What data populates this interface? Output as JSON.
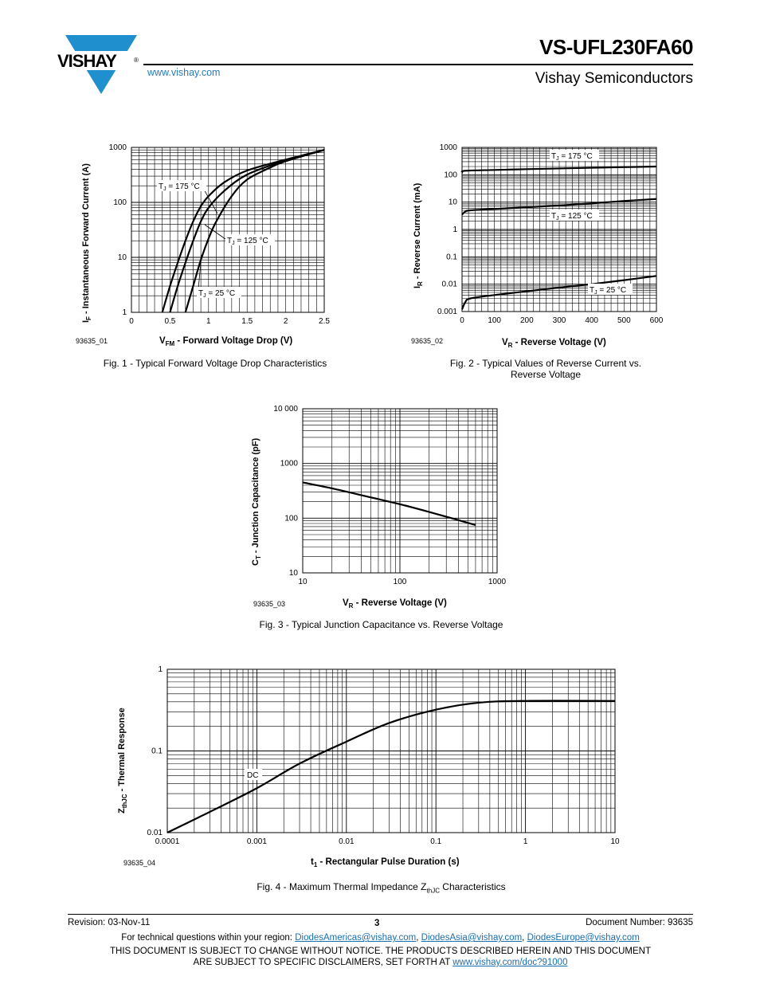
{
  "header": {
    "logo_text": "VISHAY",
    "logo_registered": "®",
    "url": "www.vishay.com",
    "part_number": "VS-UFL230FA60",
    "company": "Vishay Semiconductors"
  },
  "figures": [
    {
      "id": "93635_01",
      "caption": "Fig. 1 - Typical Forward Voltage Drop Characteristics",
      "ylabel_main": "I",
      "ylabel_sub": "F",
      "ylabel_rest": " - Instantaneous Forward Current (A)",
      "xlabel_main": "V",
      "xlabel_sub": "FM",
      "xlabel_rest": " - Forward Voltage Drop (V)",
      "x_ticks": [
        "0",
        "0.5",
        "1",
        "1.5",
        "2",
        "2.5"
      ],
      "y_ticks": [
        "1",
        "10",
        "100",
        "1000"
      ],
      "annotations": [
        {
          "pre": "T",
          "sub": "J",
          "post": " = 175 °C"
        },
        {
          "pre": "T",
          "sub": "J",
          "post": " = 125 °C"
        },
        {
          "pre": "T",
          "sub": "J",
          "post": " = 25 °C"
        }
      ]
    },
    {
      "id": "93635_02",
      "caption": "Fig. 2 - Typical Values of Reverse Current vs.",
      "caption2": "Reverse Voltage",
      "ylabel_main": "I",
      "ylabel_sub": "R",
      "ylabel_rest": " - Reverse Current (mA)",
      "xlabel_main": "V",
      "xlabel_sub": "R",
      "xlabel_rest": " - Reverse Voltage (V)",
      "x_ticks": [
        "0",
        "100",
        "200",
        "300",
        "400",
        "500",
        "600"
      ],
      "y_ticks": [
        "0.001",
        "0.01",
        "0.1",
        "1",
        "10",
        "100",
        "1000"
      ],
      "annotations": [
        {
          "pre": "T",
          "sub": "J",
          "post": " = 175 °C"
        },
        {
          "pre": "T",
          "sub": "J",
          "post": " = 125 °C"
        },
        {
          "pre": "T",
          "sub": "J",
          "post": " = 25 °C"
        }
      ]
    },
    {
      "id": "93635_03",
      "caption": "Fig. 3 - Typical Junction Capacitance vs. Reverse Voltage",
      "ylabel_main": "C",
      "ylabel_sub": "T",
      "ylabel_rest": " - Junction Capacitance (pF)",
      "xlabel_main": "V",
      "xlabel_sub": "R",
      "xlabel_rest": " - Reverse Voltage (V)",
      "x_ticks": [
        "10",
        "100",
        "1000"
      ],
      "y_ticks": [
        "10",
        "100",
        "1000",
        "10 000"
      ]
    },
    {
      "id": "93635_04",
      "caption_pre": "Fig. 4 - Maximum Thermal Impedance Z",
      "caption_sub": "thJC",
      "caption_post": " Characteristics",
      "ylabel_main": "Z",
      "ylabel_sub": "thJC",
      "ylabel_rest": " - Thermal Response",
      "xlabel_main": "t",
      "xlabel_sub": "1",
      "xlabel_rest": " - Rectangular Pulse Duration (s)",
      "x_ticks": [
        "0.0001",
        "0.001",
        "0.01",
        "0.1",
        "1",
        "10"
      ],
      "y_ticks": [
        "0.01",
        "0.1",
        "1"
      ],
      "annotation": "DC"
    }
  ],
  "chart_data": [
    {
      "type": "line",
      "xlim": [
        0,
        2.5
      ],
      "ylim": [
        1,
        1000
      ],
      "y_scale": "log",
      "series": [
        {
          "name": "TJ = 175 °C",
          "x": [
            0.4,
            0.5,
            0.6,
            0.7,
            0.8,
            0.9,
            1.0,
            1.2,
            1.5,
            2.0,
            2.5
          ],
          "y": [
            1,
            3,
            8,
            20,
            45,
            85,
            130,
            230,
            380,
            600,
            900
          ]
        },
        {
          "name": "TJ = 125 °C",
          "x": [
            0.5,
            0.6,
            0.7,
            0.8,
            0.9,
            1.0,
            1.2,
            1.5,
            2.0,
            2.5
          ],
          "y": [
            1,
            3,
            8,
            20,
            45,
            80,
            160,
            320,
            580,
            900
          ]
        },
        {
          "name": "TJ = 25 °C",
          "x": [
            0.7,
            0.8,
            0.9,
            1.0,
            1.1,
            1.3,
            1.5,
            1.8,
            2.0,
            2.5
          ],
          "y": [
            1,
            3,
            9,
            22,
            45,
            130,
            260,
            430,
            560,
            900
          ]
        }
      ]
    },
    {
      "type": "line",
      "xlim": [
        0,
        600
      ],
      "ylim": [
        0.001,
        1000
      ],
      "y_scale": "log",
      "series": [
        {
          "name": "TJ = 175 °C",
          "x": [
            0,
            10,
            100,
            200,
            300,
            400,
            500,
            600
          ],
          "y": [
            120,
            140,
            150,
            160,
            170,
            180,
            190,
            200
          ]
        },
        {
          "name": "TJ = 125 °C",
          "x": [
            0,
            10,
            25,
            100,
            200,
            300,
            400,
            500,
            600
          ],
          "y": [
            3.5,
            4.5,
            5,
            5.6,
            6.5,
            7.5,
            9,
            11,
            13
          ]
        },
        {
          "name": "TJ = 25 °C",
          "x": [
            0,
            10,
            25,
            100,
            200,
            300,
            400,
            500,
            600
          ],
          "y": [
            0.0012,
            0.0022,
            0.003,
            0.004,
            0.0055,
            0.0075,
            0.01,
            0.014,
            0.02
          ]
        }
      ]
    },
    {
      "type": "line",
      "xlim": [
        10,
        1000
      ],
      "ylim": [
        10,
        10000
      ],
      "x_scale": "log",
      "y_scale": "log",
      "series": [
        {
          "x": [
            10,
            20,
            50,
            100,
            200,
            600
          ],
          "y": [
            450,
            350,
            240,
            180,
            130,
            75
          ]
        }
      ]
    },
    {
      "type": "line",
      "xlim": [
        0.0001,
        10
      ],
      "ylim": [
        0.01,
        1
      ],
      "x_scale": "log",
      "y_scale": "log",
      "series": [
        {
          "name": "DC",
          "x": [
            0.0001,
            0.0003,
            0.001,
            0.003,
            0.01,
            0.03,
            0.1,
            0.3,
            1,
            10
          ],
          "y": [
            0.01,
            0.018,
            0.035,
            0.07,
            0.13,
            0.22,
            0.32,
            0.39,
            0.41,
            0.41
          ]
        }
      ]
    }
  ],
  "footer": {
    "revision": "Revision: 03-Nov-11",
    "page": "3",
    "doc_number": "Document Number: 93635",
    "contact_pre": "For technical questions within your region: ",
    "email1": "DiodesAmericas@vishay.com",
    "sep1": ", ",
    "email2": "DiodesAsia@vishay.com",
    "sep2": ", ",
    "email3": "DiodesEurope@vishay.com",
    "disclaimer1": "THIS DOCUMENT IS SUBJECT TO CHANGE WITHOUT NOTICE. THE PRODUCTS DESCRIBED HEREIN AND THIS DOCUMENT",
    "disclaimer2_pre": "ARE SUBJECT TO SPECIFIC DISCLAIMERS, SET FORTH AT ",
    "disclaimer_link": "www.vishay.com/doc?91000"
  }
}
